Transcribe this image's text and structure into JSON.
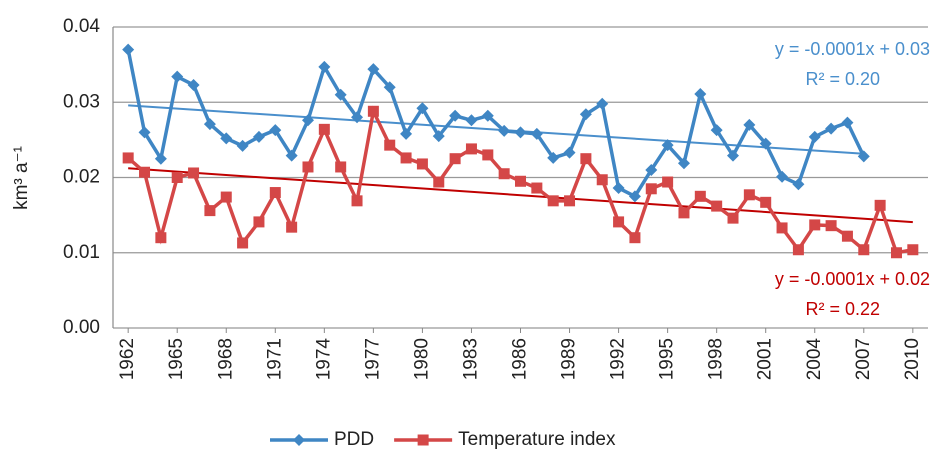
{
  "chart_data": {
    "type": "line",
    "y_label": "km³ a⁻¹",
    "x": [
      1962,
      1963,
      1964,
      1965,
      1966,
      1967,
      1968,
      1969,
      1970,
      1971,
      1972,
      1973,
      1974,
      1975,
      1976,
      1977,
      1978,
      1979,
      1980,
      1981,
      1982,
      1983,
      1984,
      1985,
      1986,
      1987,
      1988,
      1989,
      1990,
      1991,
      1992,
      1993,
      1994,
      1995,
      1996,
      1997,
      1998,
      1999,
      2000,
      2001,
      2002,
      2003,
      2004,
      2005,
      2006,
      2007,
      2008,
      2009,
      2010
    ],
    "xlim": [
      1961.5,
      2010.5
    ],
    "xticks": [
      1962,
      1965,
      1968,
      1971,
      1974,
      1977,
      1980,
      1983,
      1986,
      1989,
      1992,
      1995,
      1998,
      2001,
      2004,
      2007,
      2010
    ],
    "ylim": [
      0,
      0.04
    ],
    "yticks": [
      {
        "value": 0,
        "label": "0.00"
      },
      0.01,
      0.02,
      0.03,
      0.04
    ],
    "grid": true,
    "legend": "bottom",
    "series": [
      {
        "name": "PDD",
        "color": "#3f86c4",
        "marker": "diamond",
        "trendline": true,
        "trend_color": "#4a8fcc",
        "trend_label": "y = -0.0001x + 0.03",
        "r2_label": "R² = 0.20",
        "values": [
          0.037,
          0.026,
          0.0225,
          0.0334,
          0.0323,
          0.0271,
          0.0252,
          0.0242,
          0.0254,
          0.0263,
          0.0229,
          0.0276,
          0.0347,
          0.031,
          0.028,
          0.0344,
          0.032,
          0.0258,
          0.0292,
          0.0255,
          0.0282,
          0.0276,
          0.0282,
          0.0262,
          0.026,
          0.0258,
          0.0226,
          0.0233,
          0.0284,
          0.0298,
          0.0186,
          0.0175,
          0.021,
          0.0243,
          0.0219,
          0.0311,
          0.0263,
          0.0229,
          0.027,
          0.0245,
          0.0201,
          0.0191,
          0.0254,
          0.0265,
          0.0273,
          0.0228,
          null,
          null,
          null
        ]
      },
      {
        "name": "Temperature index",
        "color": "#d44747",
        "marker": "square",
        "trendline": true,
        "trend_color": "#c00000",
        "trend_label": "y = -0.0001x + 0.02",
        "r2_label": "R² = 0.22",
        "values": [
          0.0226,
          0.0207,
          0.012,
          0.02,
          0.0206,
          0.0156,
          0.0174,
          0.0113,
          0.0141,
          0.018,
          0.0134,
          0.0214,
          0.0264,
          0.0214,
          0.0169,
          0.0288,
          0.0243,
          0.0226,
          0.0218,
          0.0194,
          0.0225,
          0.0238,
          0.023,
          0.0205,
          0.0195,
          0.0186,
          0.0169,
          0.0169,
          0.0225,
          0.0197,
          0.0141,
          0.012,
          0.0185,
          0.0194,
          0.0153,
          0.0175,
          0.0162,
          0.0146,
          0.0177,
          0.0167,
          0.0133,
          0.0104,
          0.0137,
          0.0136,
          0.0122,
          0.0104,
          0.0163,
          0.01,
          0.0104
        ]
      }
    ]
  }
}
